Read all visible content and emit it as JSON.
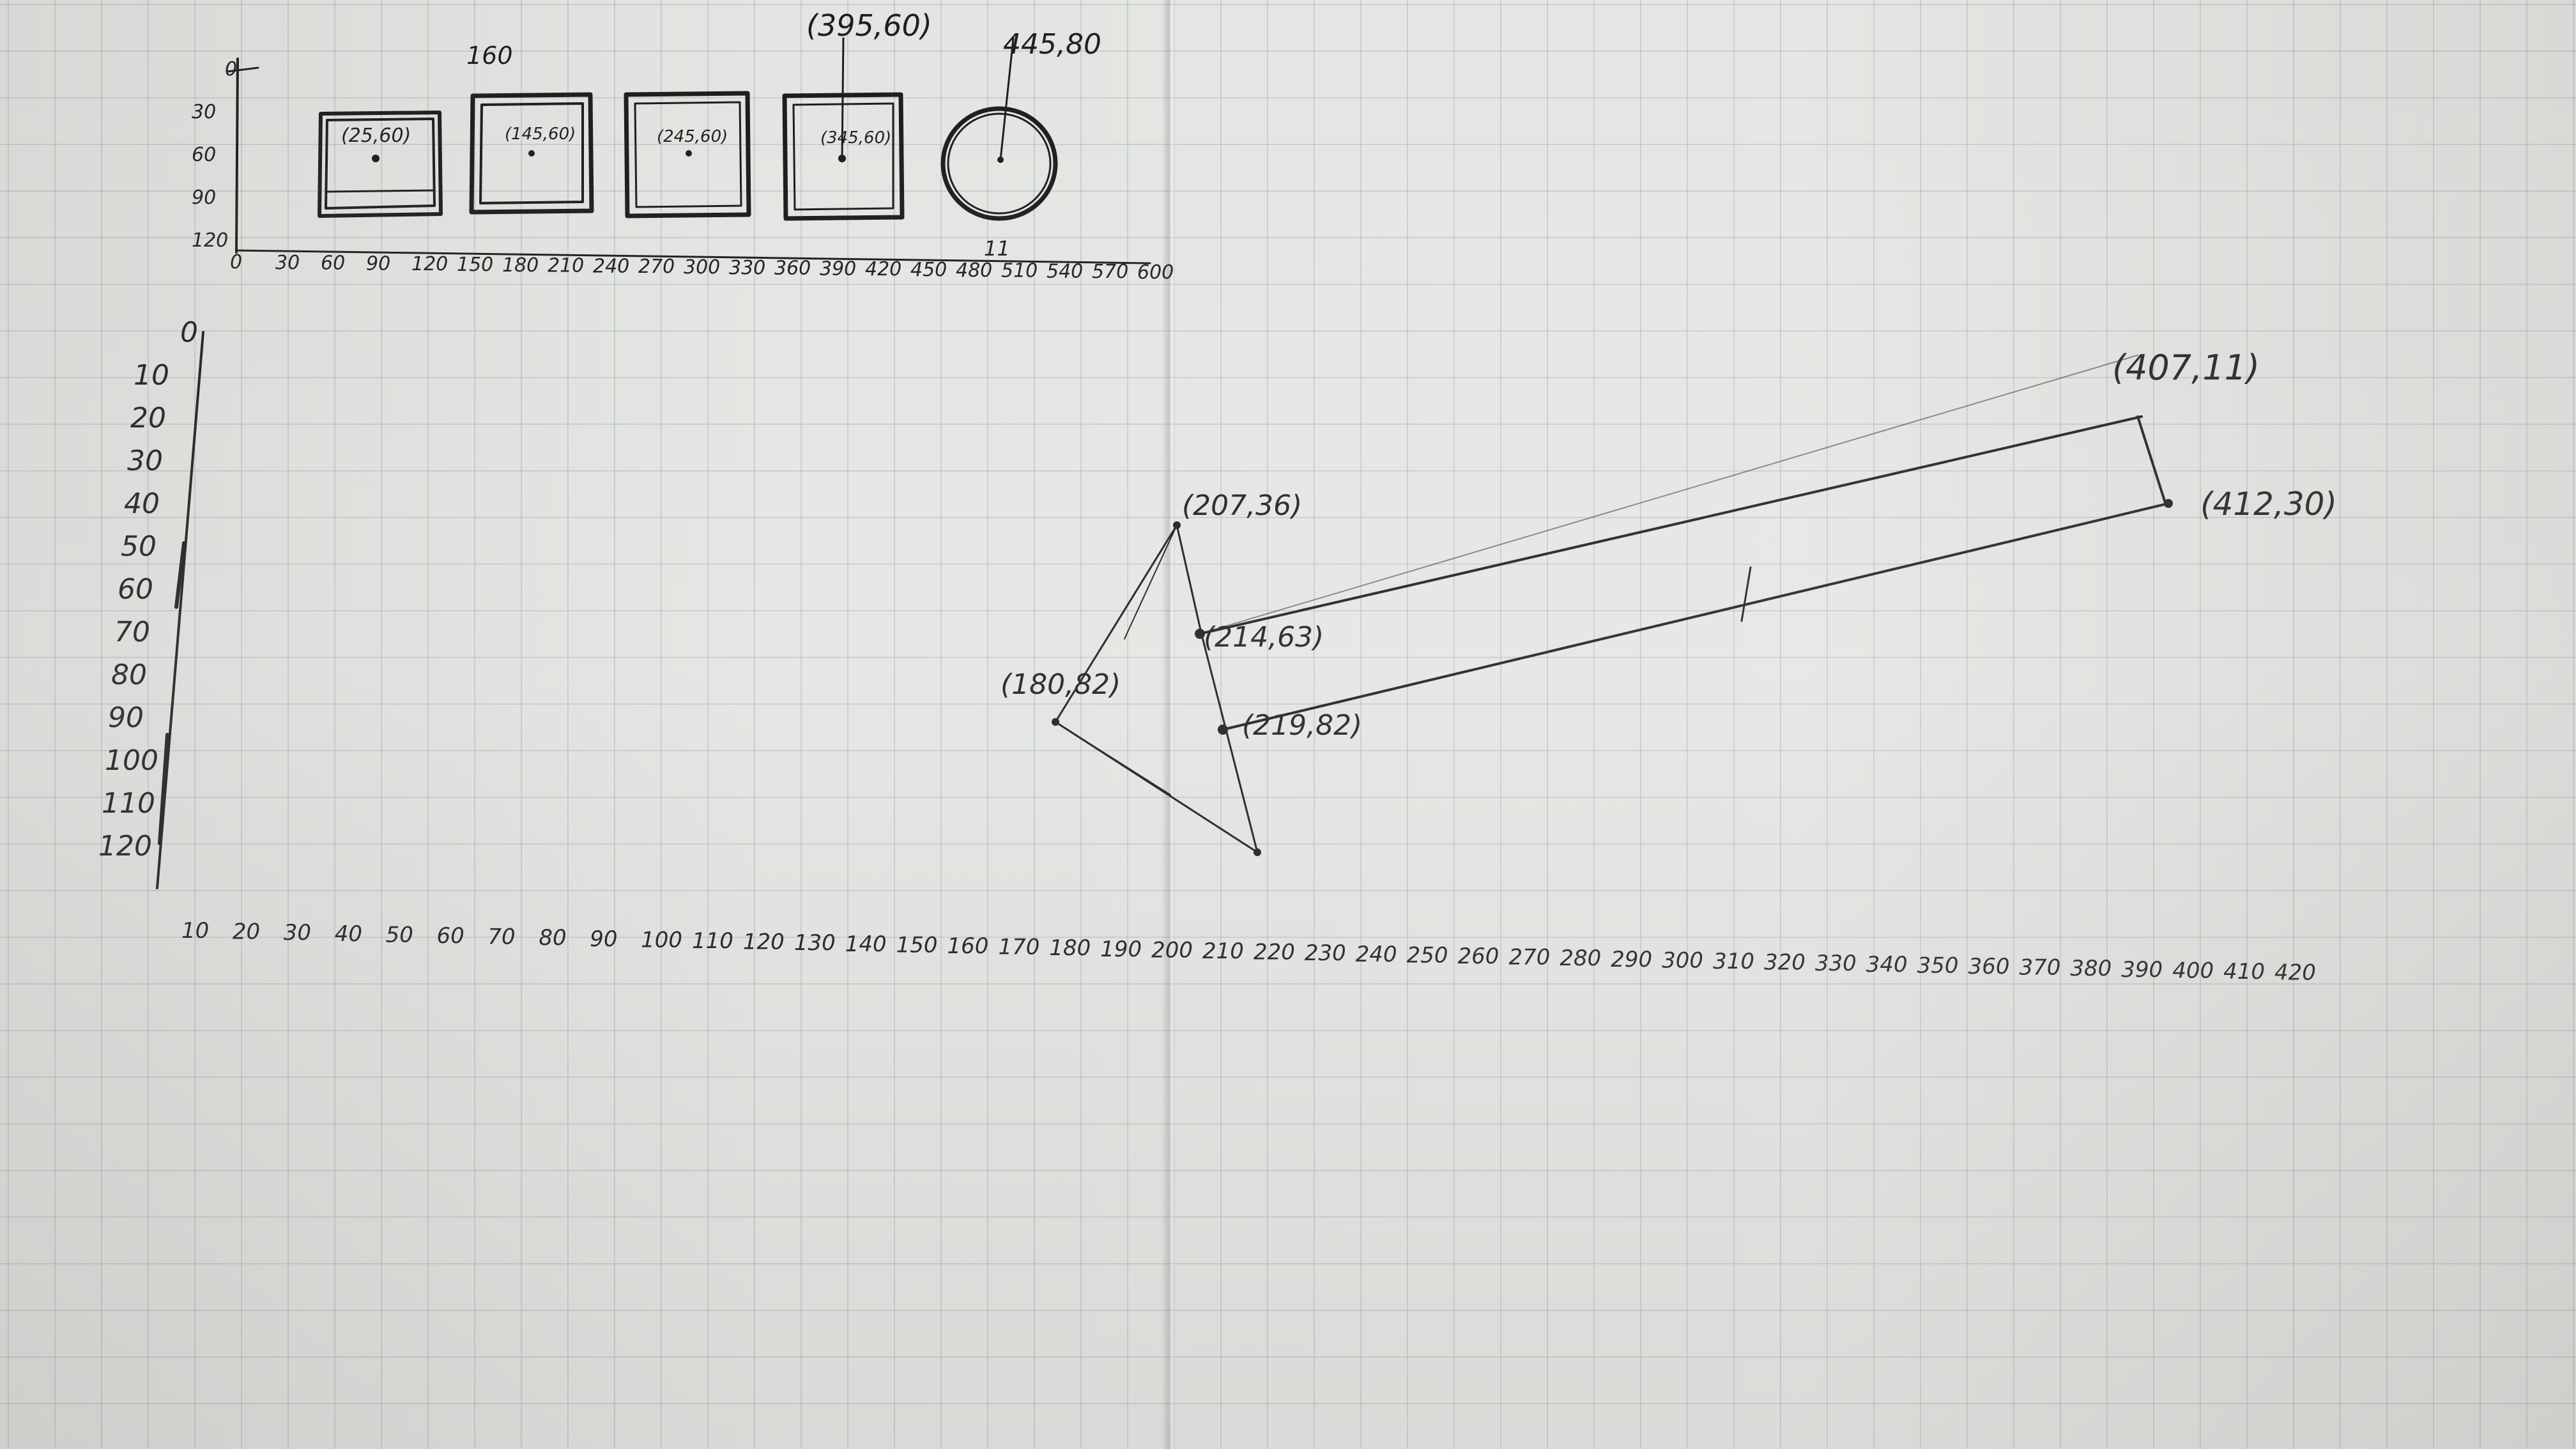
{
  "colors": {
    "ink": "#1a1a1a",
    "paper": "#e4e5e2",
    "grid": "#8fa3a3"
  },
  "top_sketch": {
    "y_ticks": [
      "0",
      "30",
      "60",
      "90",
      "120"
    ],
    "x_ticks": [
      "0",
      "30",
      "60",
      "90",
      "120",
      "150",
      "180",
      "210",
      "240",
      "270",
      "300",
      "330",
      "360",
      "390",
      "420",
      "450",
      "480",
      "510",
      "540",
      "570",
      "600"
    ],
    "label_160": "160",
    "label_top_point": "(395,60)",
    "label_circle_point": "445,80",
    "label_tick_mark": "11",
    "shapes": [
      {
        "kind": "square",
        "label": "(25,60)"
      },
      {
        "kind": "square",
        "label": "(145,60)"
      },
      {
        "kind": "square",
        "label": "(245,60)"
      },
      {
        "kind": "square",
        "label": "(345,60)"
      },
      {
        "kind": "circle",
        "label": ""
      }
    ]
  },
  "bottom_sketch": {
    "y_ticks": [
      "0",
      "10",
      "20",
      "30",
      "40",
      "50",
      "60",
      "70",
      "80",
      "90",
      "100",
      "110",
      "120"
    ],
    "x_ticks": [
      "10",
      "20",
      "30",
      "40",
      "50",
      "60",
      "70",
      "80",
      "90",
      "100",
      "110",
      "120",
      "130",
      "140",
      "150",
      "160",
      "170",
      "180",
      "190",
      "200",
      "210",
      "220",
      "230",
      "240",
      "250",
      "260",
      "270",
      "280",
      "290",
      "300",
      "310",
      "320",
      "330",
      "340",
      "350",
      "360",
      "370",
      "380",
      "390",
      "400",
      "410",
      "420"
    ],
    "points": [
      {
        "label": "(207,36)"
      },
      {
        "label": "(214,63)"
      },
      {
        "label": "(180,82)"
      },
      {
        "label": "(219,82)"
      },
      {
        "label": "(407,11)"
      },
      {
        "label": "(412,30)"
      }
    ]
  }
}
